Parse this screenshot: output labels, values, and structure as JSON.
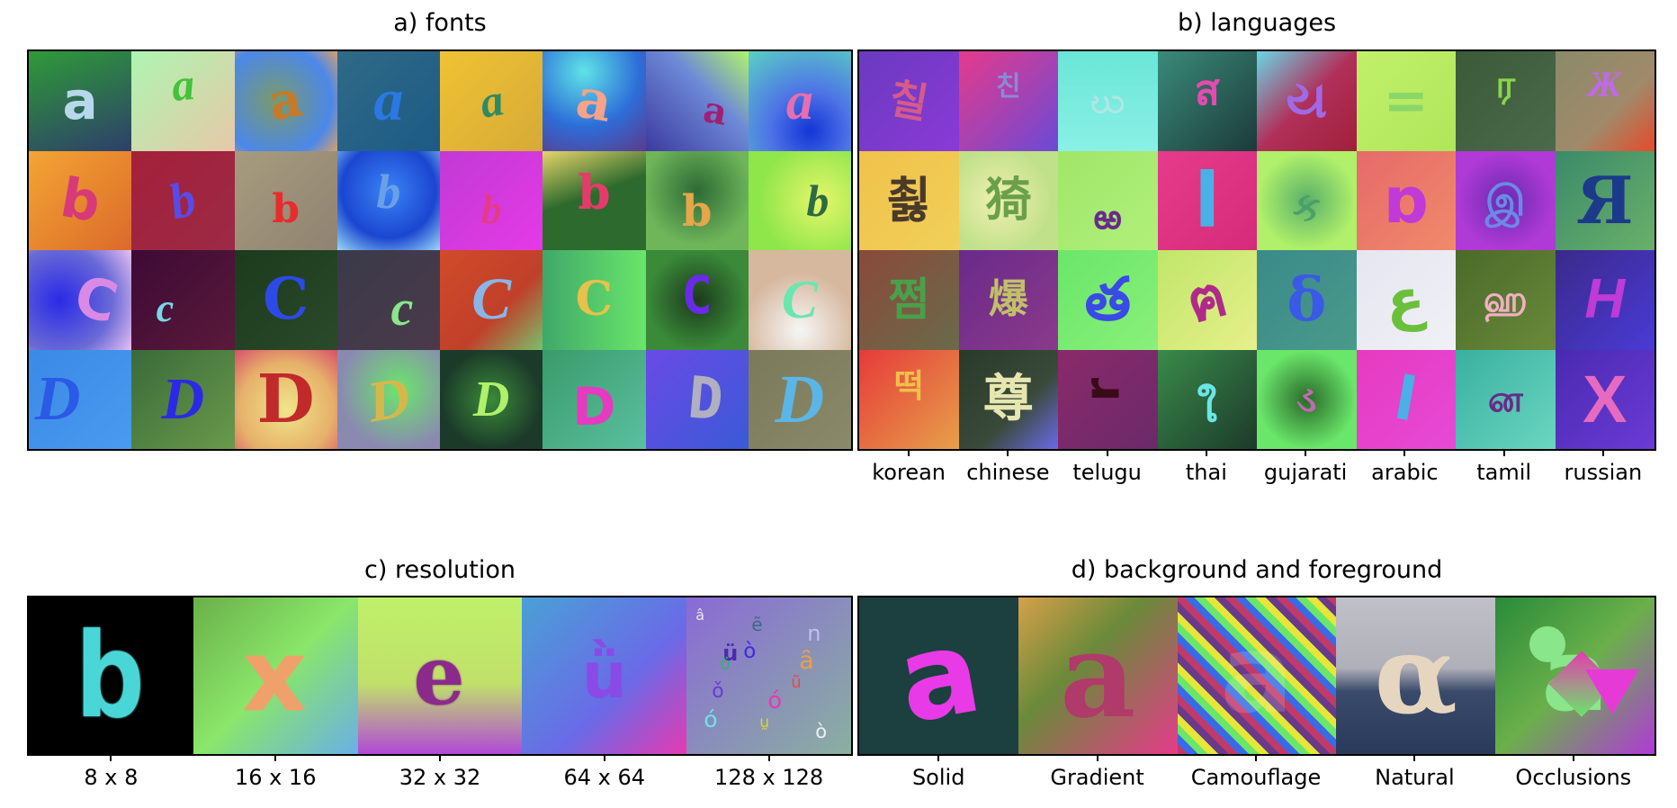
{
  "panels": {
    "fonts": {
      "title": "a) fonts",
      "rows": [
        [
          {
            "ch": "a",
            "bg": "linear-gradient(160deg,#2f9a38,#2d3f6a)",
            "fg": "#b7d8ea",
            "font": "\"DejaVu Sans\",sans-serif",
            "rot": 0,
            "size": 58
          },
          {
            "ch": "a",
            "bg": "linear-gradient(135deg,#aef5b0,#e7c8a8)",
            "fg": "#43c23a",
            "font": "\"Liberation Serif\",serif",
            "rot": -5,
            "size": 50,
            "dy": -18,
            "italic": true
          },
          {
            "ch": "a",
            "bg": "radial-gradient(circle at 40% 50%,#7a9a6a,#4b88ea 70%,#d7a06a)",
            "fg": "#c47a2a",
            "font": "\"DejaVu Serif\",serif",
            "rot": -10,
            "size": 56
          },
          {
            "ch": "a",
            "bg": "linear-gradient(135deg,#2f6a86,#1d5a86)",
            "fg": "#2b78e4",
            "font": "\"Liberation Serif\",serif",
            "rot": 0,
            "size": 66,
            "italic": true
          },
          {
            "ch": "a",
            "bg": "linear-gradient(135deg,#f0c234,#d6aa37)",
            "fg": "#2d8a65",
            "font": "\"Liberation Serif\",serif",
            "rot": -10,
            "size": 50,
            "italic": true
          },
          {
            "ch": "a",
            "bg": "radial-gradient(circle at 40% 20%,#5fe3e6,#2d6dd8 55%,#5d3a8a)",
            "fg": "#f7a28a",
            "font": "\"DejaVu Serif\",serif",
            "rot": 10,
            "size": 60
          },
          {
            "ch": "a",
            "bg": "linear-gradient(45deg,#3c3aa0,#6e8ad6 60%,#b0f56a)",
            "fg": "#a21f70",
            "font": "\"DejaVu Serif\",serif",
            "rot": 10,
            "size": 40,
            "dx": 20,
            "dy": 12
          },
          {
            "ch": "a",
            "bg": "radial-gradient(circle at 60% 80%,#1335d6,#4e74e6 40%,#5ad2c2)",
            "fg": "#e66fb0",
            "font": "\"Liberation Serif\",serif",
            "rot": 0,
            "size": 60,
            "italic": true
          }
        ],
        [
          {
            "ch": "b",
            "bg": "linear-gradient(135deg,#f3a534,#db6a2a)",
            "fg": "#d73a78",
            "font": "\"DejaVu Sans\",sans-serif",
            "rot": 10,
            "size": 60
          },
          {
            "ch": "b",
            "bg": "linear-gradient(135deg,#a4203a,#9c2a45)",
            "fg": "#5a4ae6",
            "font": "\"Liberation Serif\",serif",
            "rot": -15,
            "size": 56,
            "italic": true
          },
          {
            "ch": "b",
            "bg": "linear-gradient(135deg,#a79b7e,#8f8372)",
            "fg": "#e82c2c",
            "font": "\"DejaVu Serif\",serif",
            "rot": 0,
            "size": 44,
            "dy": 10
          },
          {
            "ch": "b",
            "bg": "radial-gradient(circle at 50% 40%,#3a84f6,#1b46d0 60%,#9bd8f6)",
            "fg": "#6aa0e6",
            "font": "\"Liberation Serif\",serif",
            "rot": 0,
            "size": 54,
            "italic": true,
            "dy": -10
          },
          {
            "ch": "b",
            "bg": "linear-gradient(135deg,#c13ad5,#e43ae6)",
            "fg": "#e43a8a",
            "font": "\"Liberation Serif\",serif",
            "rot": 0,
            "size": 46,
            "italic": true,
            "dy": 10
          },
          {
            "ch": "b",
            "bg": "linear-gradient(160deg,#e6d46a,#2d6a2d 45%,#2d6a2d)",
            "fg": "#e83a6a",
            "font": "\"DejaVu Serif\",serif",
            "rot": 0,
            "size": 52,
            "dy": -8
          },
          {
            "ch": "b",
            "bg": "radial-gradient(circle at 50% 40%,#2d6a35,#6fb65a 70%)",
            "fg": "#e6a64a",
            "font": "\"DejaVu Serif\",serif",
            "rot": 0,
            "size": 48,
            "dy": 12
          },
          {
            "ch": "b",
            "bg": "radial-gradient(circle at 70% 50%,#e6f66a,#8fe64a 70%)",
            "fg": "#2d6a45",
            "font": "\"Liberation Serif\",serif",
            "rot": 0,
            "size": 50,
            "italic": true,
            "dx": 20
          }
        ],
        [
          {
            "ch": "C",
            "bg": "radial-gradient(circle at 30% 50%,#2a2ae6,#6a6ad6 60%,#e6c0f0)",
            "fg": "#d98ae6",
            "font": "\"DejaVu Sans\",sans-serif",
            "rot": 15,
            "size": 62,
            "dx": 18
          },
          {
            "ch": "c",
            "bg": "linear-gradient(135deg,#3d0a35,#5a1a3a)",
            "fg": "#7ad8e6",
            "font": "\"Liberation Serif\",serif",
            "rot": 0,
            "size": 44,
            "italic": true,
            "dx": -20,
            "dy": 10
          },
          {
            "ch": "C",
            "bg": "linear-gradient(135deg,#1c3a1c,#2a4a2a)",
            "fg": "#2d4ae6",
            "font": "\"DejaVu Serif\",serif",
            "rot": 0,
            "size": 64
          },
          {
            "ch": "c",
            "bg": "linear-gradient(135deg,#3a3a4a,#4a3a4a)",
            "fg": "#8ae68a",
            "font": "\"Liberation Serif\",serif",
            "rot": 0,
            "size": 56,
            "italic": true,
            "dx": 15,
            "dy": 10
          },
          {
            "ch": "C",
            "bg": "linear-gradient(135deg,#d24a2a,#c0402a 60%,#7ac06a)",
            "fg": "#8ab6e6",
            "font": "\"Liberation Serif\",serif",
            "rot": 0,
            "size": 66,
            "italic": true
          },
          {
            "ch": "C",
            "bg": "linear-gradient(90deg,#3fa86a,#6ae66a)",
            "fg": "#e6c24a",
            "font": "\"DejaVu Serif\",serif",
            "rot": 0,
            "size": 52
          },
          {
            "ch": "C",
            "bg": "radial-gradient(circle at 50% 50%,#1c3a1c,#3a8a3a 70%)",
            "fg": "#6a2ae6",
            "font": "\"DejaVu Sans Mono\",monospace",
            "rot": 0,
            "size": 58,
            "dy": -5
          },
          {
            "ch": "C",
            "bg": "radial-gradient(circle at 50% 80%,#f6f6f6,#d6b89e 60%)",
            "fg": "#6ae6b0",
            "font": "\"Liberation Serif\",serif",
            "rot": 0,
            "size": 60,
            "italic": true
          }
        ],
        [
          {
            "ch": "D",
            "bg": "linear-gradient(135deg,#3a8ae6,#4a9af0)",
            "fg": "#2a5ae6",
            "font": "\"Liberation Serif\",serif",
            "rot": 0,
            "size": 70,
            "italic": true,
            "dx": -25
          },
          {
            "ch": "D",
            "bg": "linear-gradient(135deg,#3a6a3a,#6a9a4a)",
            "fg": "#2a2ae6",
            "font": "\"Liberation Serif\",serif",
            "rot": 0,
            "size": 66,
            "italic": true
          },
          {
            "ch": "D",
            "bg": "radial-gradient(circle at 50% 60%,#f0e68a,#e6b06a 60%,#d6506a)",
            "fg": "#c02a2a",
            "font": "\"DejaVu Serif\",serif",
            "rot": 0,
            "size": 74
          },
          {
            "ch": "D",
            "bg": "radial-gradient(circle at 60% 40%,#6ae66a,#8a8ab0 70%)",
            "fg": "#d6b84a",
            "font": "\"Liberation Serif\",serif",
            "rot": -10,
            "size": 64,
            "italic": true
          },
          {
            "ch": "D",
            "bg": "radial-gradient(circle at 50% 50%,#3a8a3a,#1c3a2a 70%)",
            "fg": "#b0f06a",
            "font": "\"Liberation Serif\",serif",
            "rot": 0,
            "size": 56,
            "italic": true
          },
          {
            "ch": "D",
            "bg": "linear-gradient(135deg,#3a9a6a,#5ac0a0)",
            "fg": "#e63ac0",
            "font": "\"DejaVu Sans\",sans-serif",
            "rot": 0,
            "size": 58,
            "dy": 8
          },
          {
            "ch": "D",
            "bg": "linear-gradient(135deg,#6a4ae6,#3a5ad6)",
            "fg": "#b0b0c0",
            "font": "\"DejaVu Sans Mono\",monospace",
            "rot": 5,
            "size": 64,
            "dx": 10
          },
          {
            "ch": "D",
            "bg": "linear-gradient(135deg,#7a7a5a,#8a8a6a)",
            "fg": "#5ab6e6",
            "font": "\"Liberation Serif\",serif",
            "rot": 0,
            "size": 76,
            "italic": true
          }
        ]
      ]
    },
    "languages": {
      "title": "b) languages",
      "labels": [
        "korean",
        "chinese",
        "telugu",
        "thai",
        "gujarati",
        "arabic",
        "tamil",
        "russian"
      ],
      "rows": [
        [
          {
            "ch": "칠",
            "bg": "linear-gradient(135deg,#6a3ac0,#8a3ad6)",
            "fg": "#d65a8a",
            "font": "\"DejaVu Sans\",sans-serif",
            "rot": 10,
            "size": 46
          },
          {
            "ch": "친",
            "bg": "linear-gradient(135deg,#e63a8a,#6a4ad6)",
            "fg": "#8a8ad6",
            "font": "\"DejaVu Sans\",sans-serif",
            "rot": 0,
            "size": 30,
            "dy": -15
          },
          {
            "ch": "ဃ",
            "bg": "linear-gradient(180deg,#6ae6d6,#8af0e6)",
            "fg": "#b0e6e6",
            "font": "\"DejaVu Sans\",sans-serif",
            "rot": 0,
            "size": 40
          },
          {
            "ch": "ส",
            "bg": "linear-gradient(135deg,#3a8a7a,#1c3a3a)",
            "fg": "#e64ab0",
            "font": "\"DejaVu Sans\",sans-serif",
            "rot": 0,
            "size": 46,
            "dy": -12
          },
          {
            "ch": "ય",
            "bg": "linear-gradient(135deg,#6ad6e6,#b0305a 50%,#a0203a)",
            "fg": "#a06ae6",
            "font": "\"DejaVu Sans\",sans-serif",
            "rot": 0,
            "size": 56
          },
          {
            "ch": "=",
            "bg": "linear-gradient(135deg,#c0f06a,#b0e65a)",
            "fg": "#8ad66a",
            "font": "\"DejaVu Sans\",sans-serif",
            "rot": 0,
            "size": 60
          },
          {
            "ch": "ர",
            "bg": "linear-gradient(135deg,#3a5a3a,#4a6a4a)",
            "fg": "#8ad64a",
            "font": "\"DejaVu Sans\",sans-serif",
            "rot": 0,
            "size": 42,
            "dy": -18
          },
          {
            "ch": "Ж",
            "bg": "linear-gradient(135deg,#8a8a6a,#a08a6a 60%,#e64a2a)",
            "fg": "#c06ae6",
            "font": "\"Liberation Serif\",serif",
            "rot": 0,
            "size": 40,
            "italic": true,
            "dy": -18
          }
        ],
        [
          {
            "ch": "쵫",
            "bg": "linear-gradient(135deg,#f0c24a,#f0d05a)",
            "fg": "#4a3a2a",
            "font": "\"DejaVu Sans\",sans-serif",
            "rot": 0,
            "size": 54
          },
          {
            "ch": "猗",
            "bg": "radial-gradient(circle at 40% 50%,#f0f0b0,#c0e08a 70%)",
            "fg": "#6aa04a",
            "font": "\"DejaVu Sans\",sans-serif",
            "rot": 0,
            "size": 52
          },
          {
            "ch": "ఱ",
            "bg": "linear-gradient(135deg,#a0e66a,#b0f07a)",
            "fg": "#6a2a8a",
            "font": "\"DejaVu Sans\",sans-serif",
            "rot": 0,
            "size": 38,
            "dy": 18
          },
          {
            "ch": "l",
            "bg": "linear-gradient(135deg,#e63a8a,#d62a7a)",
            "fg": "#4ab0e6",
            "font": "\"DejaVu Sans\",sans-serif",
            "rot": 0,
            "size": 84
          },
          {
            "ch": "ક",
            "bg": "radial-gradient(circle at 50% 50%,#5ab06a,#b0f06a 70%)",
            "fg": "#4aa06a",
            "font": "\"DejaVu Sans\",sans-serif",
            "rot": 0,
            "size": 44,
            "dy": 8
          },
          {
            "ch": "ɒ",
            "bg": "linear-gradient(135deg,#e66a6a,#f08a6a)",
            "fg": "#c03ad6",
            "font": "\"DejaVu Sans\",sans-serif",
            "rot": 0,
            "size": 70
          },
          {
            "ch": "இ",
            "bg": "radial-gradient(circle at 50% 50%,#6a2ab0,#b03ad6 70%)",
            "fg": "#6a8ae6",
            "font": "\"DejaVu Sans\",sans-serif",
            "rot": 0,
            "size": 46
          },
          {
            "ch": "Я",
            "bg": "linear-gradient(135deg,#3a8a6a,#6ab06a)",
            "fg": "#1c3a8a",
            "font": "\"DejaVu Serif\",serif",
            "rot": 0,
            "size": 72
          }
        ],
        [
          {
            "ch": "쩜",
            "bg": "linear-gradient(135deg,#8a4a3a,#6a6a4a)",
            "fg": "#4aa04a",
            "font": "\"DejaVu Sans\",sans-serif",
            "rot": 0,
            "size": 50
          },
          {
            "ch": "爆",
            "bg": "linear-gradient(135deg,#6a2a8a,#8a3a8a)",
            "fg": "#c0c06a",
            "font": "\"DejaVu Sans\",sans-serif",
            "rot": 0,
            "size": 44
          },
          {
            "ch": "త",
            "bg": "linear-gradient(135deg,#6ae66a,#8af07a)",
            "fg": "#3a4ae6",
            "font": "\"DejaVu Sans\",sans-serif",
            "rot": 0,
            "size": 66
          },
          {
            "ch": "ฅ",
            "bg": "linear-gradient(135deg,#c0e66a,#e6f08a)",
            "fg": "#b02a8a",
            "font": "\"DejaVu Sans\",sans-serif",
            "rot": -15,
            "size": 64
          },
          {
            "ch": "δ",
            "bg": "linear-gradient(135deg,#3a8a8a,#4a9a8a)",
            "fg": "#3a5ae6",
            "font": "\"DejaVu Serif\",serif",
            "rot": 0,
            "size": 66
          },
          {
            "ch": "ع",
            "bg": "linear-gradient(135deg,#e6e6f0,#f0f0f6)",
            "fg": "#6ac03a",
            "font": "\"DejaVu Sans\",sans-serif",
            "rot": 0,
            "size": 62
          },
          {
            "ch": "ஹ",
            "bg": "linear-gradient(135deg,#4a6a2a,#6a8a3a)",
            "fg": "#f0b0c0",
            "font": "\"DejaVu Sans\",sans-serif",
            "rot": 0,
            "size": 40
          },
          {
            "ch": "H",
            "bg": "linear-gradient(135deg,#3a2a8a,#4a3ad6)",
            "fg": "#c03ad6",
            "font": "\"Liberation Sans\",sans-serif",
            "rot": 0,
            "size": 62,
            "italic": true
          }
        ],
        [
          {
            "ch": "떡",
            "bg": "linear-gradient(135deg,#e63a3a,#e6a04a)",
            "fg": "#f0c04a",
            "font": "\"DejaVu Sans\",sans-serif",
            "rot": 0,
            "size": 36,
            "dy": -14
          },
          {
            "ch": "尊",
            "bg": "linear-gradient(135deg,#2a3a2a,#3a4a3a 60%,#6a6ae6)",
            "fg": "#e6e6b0",
            "font": "\"DejaVu Sans\",sans-serif",
            "rot": 0,
            "size": 56
          },
          {
            "ch": "ɹ",
            "bg": "linear-gradient(135deg,#8a2a6a,#6a2a6a)",
            "fg": "#3a0a1a",
            "font": "\"DejaVu Sans\",sans-serif",
            "rot": 90,
            "size": 54,
            "dy": -14
          },
          {
            "ch": "ใ",
            "bg": "linear-gradient(135deg,#3a8a4a,#1c3a2a)",
            "fg": "#6ae6e6",
            "font": "\"DejaVu Sans\",sans-serif",
            "rot": 0,
            "size": 46,
            "dy": 8
          },
          {
            "ch": "ડ",
            "bg": "radial-gradient(circle at 50% 50%,#2a6a2a,#6ae66a 70%)",
            "fg": "#c06ab0",
            "font": "\"DejaVu Sans\",sans-serif",
            "rot": 0,
            "size": 40
          },
          {
            "ch": "ا",
            "bg": "linear-gradient(135deg,#e63ac0,#e64ad6)",
            "fg": "#4ab0e6",
            "font": "\"DejaVu Sans\",sans-serif",
            "rot": 10,
            "size": 66
          },
          {
            "ch": "ன",
            "bg": "linear-gradient(135deg,#3ab0a0,#6ad6c0)",
            "fg": "#6a2a8a",
            "font": "\"DejaVu Sans\",sans-serif",
            "rot": 0,
            "size": 40
          },
          {
            "ch": "X",
            "bg": "linear-gradient(135deg,#4a2ab0,#6a3ad6)",
            "fg": "#e66ac0",
            "font": "\"Liberation Sans\",sans-serif",
            "rot": 0,
            "size": 74
          }
        ]
      ]
    },
    "resolution": {
      "title": "c) resolution",
      "labels": [
        "8 x 8",
        "16 x 16",
        "32 x 32",
        "64 x 64",
        "128 x 128"
      ],
      "cells": [
        {
          "ch": "b",
          "bg": "#000000",
          "fg": "#4ad6d6",
          "font": "\"DejaVu Sans Mono\",monospace",
          "size": 130,
          "pixelate": true
        },
        {
          "ch": "x",
          "bg": "linear-gradient(135deg,#6ab04a,#8ae66a 50%,#6ab0e6)",
          "fg": "#f0a06a",
          "font": "\"DejaVu Sans\",sans-serif",
          "size": 110,
          "pixelate": true
        },
        {
          "ch": "e",
          "bg": "linear-gradient(180deg,#c0f06a,#c0e06a 55%,#b04ad6)",
          "fg": "#8a2a8a",
          "font": "\"DejaVu Serif\",serif",
          "size": 90,
          "pixelate": true
        },
        {
          "ch": "ǜ",
          "bg": "linear-gradient(135deg,#4aa0d6,#6a6ae6 60%,#e63ab0)",
          "fg": "#8a4ae6",
          "font": "\"DejaVu Sans\",sans-serif",
          "size": 70
        },
        {
          "ch": "ü",
          "bg": "linear-gradient(135deg,#8a6ad6,#8ab0a0)",
          "fg": "#4a2ab0",
          "font": "\"DejaVu Sans\",sans-serif",
          "size": 24,
          "scatter": true
        }
      ]
    },
    "background": {
      "title": "d) background and foreground",
      "labels": [
        "Solid",
        "Gradient",
        "Camouflage",
        "Natural",
        "Occlusions"
      ],
      "cells": [
        {
          "ch": "a",
          "bg": "#1c3f3f",
          "fg": "#e83ae6",
          "font": "\"DejaVu Sans\",sans-serif",
          "size": 130,
          "rot": -10
        },
        {
          "ch": "a",
          "bg": "linear-gradient(135deg,#d6a04a,#6a8a3a 40%,#e63a8a)",
          "fg": "#b03a6a",
          "font": "\"DejaVu Serif\",serif",
          "size": 130
        },
        {
          "ch": "a",
          "bg": "repeating-linear-gradient(45deg,#c03a6a 0 8px,#3a6ae6 8px 16px,#6ae66a 16px 24px,#e6e63a 24px 32px,#6a3a8a 32px 40px)",
          "fg": "transparent",
          "font": "\"DejaVu Sans\",sans-serif",
          "size": 120
        },
        {
          "ch": "α",
          "bg": "linear-gradient(180deg,#c0c0c8,#b0b0b8 45%,#3a4a6a 60%,#2a3a5a)",
          "fg": "#e6d6c0",
          "font": "\"DejaVu Serif\",serif",
          "size": 120
        },
        {
          "ch": "a",
          "bg": "linear-gradient(135deg,#2a8a3a,#6ab04a 50%,#b03ad6)",
          "fg": "#8ae68a",
          "font": "\"DejaVu Sans\",sans-serif",
          "size": 110,
          "occl": true
        }
      ]
    }
  }
}
